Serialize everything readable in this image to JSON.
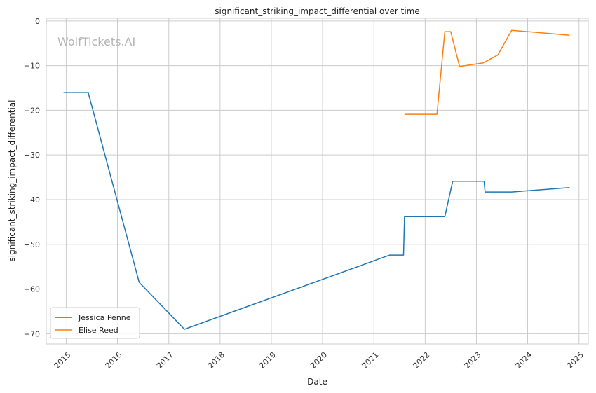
{
  "chart_data": {
    "type": "line",
    "title": "significant_striking_impact_differential over time",
    "xlabel": "Date",
    "ylabel": "significant_striking_impact_differential",
    "watermark": "WolfTickets.AI",
    "x_axis_type": "date",
    "xlim": [
      "2014-08-12",
      "2025-03-08"
    ],
    "ylim": [
      -72.3,
      0.6
    ],
    "x_ticks": [
      "2015-01-01",
      "2016-01-01",
      "2017-01-01",
      "2018-01-01",
      "2019-01-01",
      "2020-01-01",
      "2021-01-01",
      "2022-01-01",
      "2023-01-01",
      "2024-01-01",
      "2025-01-01"
    ],
    "x_tick_labels": [
      "2015",
      "2016",
      "2017",
      "2018",
      "2019",
      "2020",
      "2021",
      "2022",
      "2023",
      "2024",
      "2025"
    ],
    "y_ticks": [
      0,
      -10,
      -20,
      -30,
      -40,
      -50,
      -60,
      -70
    ],
    "y_tick_labels": [
      "0",
      "−10",
      "−20",
      "−30",
      "−40",
      "−50",
      "−60",
      "−70"
    ],
    "grid": true,
    "legend_position": "lower-left",
    "series": [
      {
        "name": "Jessica Penne",
        "color": "#1f77b4",
        "points": [
          [
            "2014-12-13",
            -16.0
          ],
          [
            "2015-06-06",
            -16.0
          ],
          [
            "2016-06-04",
            -58.5
          ],
          [
            "2017-04-22",
            -69.0
          ],
          [
            "2021-04-24",
            -52.4
          ],
          [
            "2021-07-31",
            -52.4
          ],
          [
            "2021-08-07",
            -43.8
          ],
          [
            "2022-05-21",
            -43.8
          ],
          [
            "2022-07-16",
            -35.9
          ],
          [
            "2023-02-25",
            -35.9
          ],
          [
            "2023-03-04",
            -38.3
          ],
          [
            "2023-09-09",
            -38.3
          ],
          [
            "2024-10-26",
            -37.3
          ]
        ]
      },
      {
        "name": "Elise Reed",
        "color": "#ff7f0e",
        "points": [
          [
            "2021-08-07",
            -20.9
          ],
          [
            "2022-03-26",
            -20.9
          ],
          [
            "2022-05-21",
            -2.4
          ],
          [
            "2022-07-02",
            -2.4
          ],
          [
            "2022-09-03",
            -10.2
          ],
          [
            "2023-02-18",
            -9.4
          ],
          [
            "2023-06-03",
            -7.6
          ],
          [
            "2023-09-09",
            -2.1
          ],
          [
            "2024-10-26",
            -3.2
          ]
        ]
      }
    ]
  }
}
